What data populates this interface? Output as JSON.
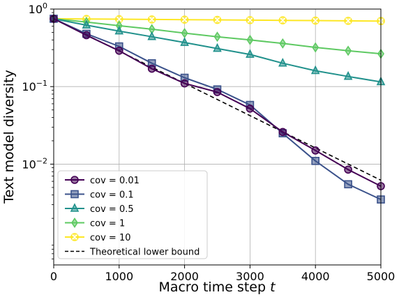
{
  "chart_data": {
    "type": "line",
    "xlabel": "Macro time step ",
    "xlabel_var": "t",
    "ylabel": "Text model diversity",
    "xlim": [
      0,
      5000
    ],
    "ylim_log10": [
      -3.3,
      0
    ],
    "y_scale": "log",
    "grid": true,
    "legend_position": "lower-left",
    "x_ticks": [
      0,
      1000,
      2000,
      3000,
      4000,
      5000
    ],
    "y_ticks": [
      {
        "exp": 0,
        "base": "10",
        "sup": "0"
      },
      {
        "exp": -1,
        "base": "10",
        "sup": "−1"
      },
      {
        "exp": -2,
        "base": "10",
        "sup": "−2"
      }
    ],
    "x": [
      0,
      500,
      1000,
      1500,
      2000,
      2500,
      3000,
      3500,
      4000,
      4500,
      5000
    ],
    "series": [
      {
        "name": "cov = 0.01",
        "color": "#440154",
        "marker": "circle",
        "values": [
          0.75,
          0.46,
          0.29,
          0.17,
          0.11,
          0.085,
          0.052,
          0.026,
          0.015,
          0.0085,
          0.0052
        ]
      },
      {
        "name": "cov = 0.1",
        "color": "#3b528b",
        "marker": "square",
        "values": [
          0.75,
          0.48,
          0.33,
          0.2,
          0.13,
          0.092,
          0.058,
          0.025,
          0.011,
          0.0055,
          0.0035
        ]
      },
      {
        "name": "cov = 0.5",
        "color": "#21918c",
        "marker": "triangle",
        "values": [
          0.75,
          0.62,
          0.52,
          0.44,
          0.37,
          0.31,
          0.26,
          0.2,
          0.16,
          0.135,
          0.115
        ]
      },
      {
        "name": "cov = 1",
        "color": "#5ec962",
        "marker": "diamond",
        "values": [
          0.75,
          0.68,
          0.61,
          0.55,
          0.49,
          0.44,
          0.4,
          0.36,
          0.32,
          0.29,
          0.265
        ]
      },
      {
        "name": "cov = 10",
        "color": "#fde725",
        "marker": "x",
        "values": [
          0.75,
          0.745,
          0.74,
          0.735,
          0.73,
          0.725,
          0.72,
          0.715,
          0.71,
          0.705,
          0.7
        ]
      }
    ],
    "reference_line": {
      "name": "Theoretical lower bound",
      "color": "#000000",
      "style": "dashed",
      "x": [
        0,
        5000
      ],
      "values": [
        0.75,
        0.0062
      ]
    }
  }
}
